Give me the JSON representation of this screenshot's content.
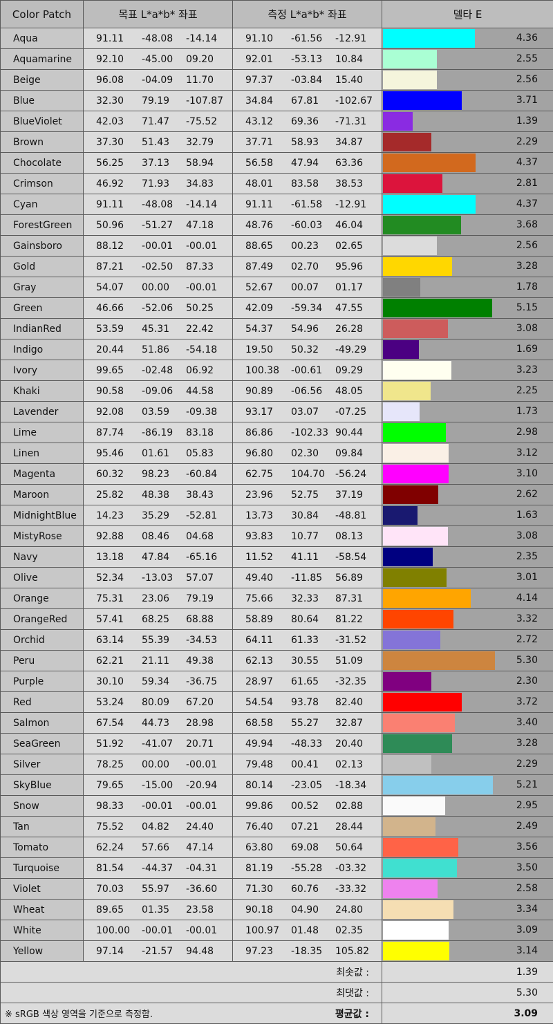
{
  "header": {
    "name": "Color Patch",
    "target": "목표 L*a*b* 좌표",
    "measured": "측정 L*a*b* 좌표",
    "delta": "델타 E"
  },
  "rows": [
    {
      "name": "Aqua",
      "color": "#00ffff",
      "target": [
        "91.11",
        "-48.08",
        "-14.14"
      ],
      "measured": [
        "91.10",
        "-61.56",
        "-12.91"
      ],
      "delta": "4.36"
    },
    {
      "name": "Aquamarine",
      "color": "#aaffd4",
      "target": [
        "92.10",
        "-45.00",
        "09.20"
      ],
      "measured": [
        "92.01",
        "-53.13",
        "10.84"
      ],
      "delta": "2.55"
    },
    {
      "name": "Beige",
      "color": "#f5f5dc",
      "target": [
        "96.08",
        "-04.09",
        "11.70"
      ],
      "measured": [
        "97.37",
        "-03.84",
        "15.40"
      ],
      "delta": "2.56"
    },
    {
      "name": "Blue",
      "color": "#0000ff",
      "target": [
        "32.30",
        "79.19",
        "-107.87"
      ],
      "measured": [
        "34.84",
        "67.81",
        "-102.67"
      ],
      "delta": "3.71"
    },
    {
      "name": "BlueViolet",
      "color": "#8a2be2",
      "target": [
        "42.03",
        "71.47",
        "-75.52"
      ],
      "measured": [
        "43.12",
        "69.36",
        "-71.31"
      ],
      "delta": "1.39"
    },
    {
      "name": "Brown",
      "color": "#a52a2a",
      "target": [
        "37.30",
        "51.43",
        "32.79"
      ],
      "measured": [
        "37.71",
        "58.93",
        "34.87"
      ],
      "delta": "2.29"
    },
    {
      "name": "Chocolate",
      "color": "#d2691e",
      "target": [
        "56.25",
        "37.13",
        "58.94"
      ],
      "measured": [
        "56.58",
        "47.94",
        "63.36"
      ],
      "delta": "4.37"
    },
    {
      "name": "Crimson",
      "color": "#dc143c",
      "target": [
        "46.92",
        "71.93",
        "34.83"
      ],
      "measured": [
        "48.01",
        "83.58",
        "38.53"
      ],
      "delta": "2.81"
    },
    {
      "name": "Cyan",
      "color": "#00ffff",
      "target": [
        "91.11",
        "-48.08",
        "-14.14"
      ],
      "measured": [
        "91.11",
        "-61.58",
        "-12.91"
      ],
      "delta": "4.37"
    },
    {
      "name": "ForestGreen",
      "color": "#228b22",
      "target": [
        "50.96",
        "-51.27",
        "47.18"
      ],
      "measured": [
        "48.76",
        "-60.03",
        "46.04"
      ],
      "delta": "3.68"
    },
    {
      "name": "Gainsboro",
      "color": "#dcdcdc",
      "target": [
        "88.12",
        "-00.01",
        "-00.01"
      ],
      "measured": [
        "88.65",
        "00.23",
        "02.65"
      ],
      "delta": "2.56"
    },
    {
      "name": "Gold",
      "color": "#ffd700",
      "target": [
        "87.21",
        "-02.50",
        "87.33"
      ],
      "measured": [
        "87.49",
        "02.70",
        "95.96"
      ],
      "delta": "3.28"
    },
    {
      "name": "Gray",
      "color": "#808080",
      "target": [
        "54.07",
        "00.00",
        "-00.01"
      ],
      "measured": [
        "52.67",
        "00.07",
        "01.17"
      ],
      "delta": "1.78"
    },
    {
      "name": "Green",
      "color": "#008000",
      "target": [
        "46.66",
        "-52.06",
        "50.25"
      ],
      "measured": [
        "42.09",
        "-59.34",
        "47.55"
      ],
      "delta": "5.15"
    },
    {
      "name": "IndianRed",
      "color": "#cd5c5c",
      "target": [
        "53.59",
        "45.31",
        "22.42"
      ],
      "measured": [
        "54.37",
        "54.96",
        "26.28"
      ],
      "delta": "3.08"
    },
    {
      "name": "Indigo",
      "color": "#4b0082",
      "target": [
        "20.44",
        "51.86",
        "-54.18"
      ],
      "measured": [
        "19.50",
        "50.32",
        "-49.29"
      ],
      "delta": "1.69"
    },
    {
      "name": "Ivory",
      "color": "#fffff0",
      "target": [
        "99.65",
        "-02.48",
        "06.92"
      ],
      "measured": [
        "100.38",
        "-00.61",
        "09.29"
      ],
      "delta": "3.23"
    },
    {
      "name": "Khaki",
      "color": "#f0e68c",
      "target": [
        "90.58",
        "-09.06",
        "44.58"
      ],
      "measured": [
        "90.89",
        "-06.56",
        "48.05"
      ],
      "delta": "2.25"
    },
    {
      "name": "Lavender",
      "color": "#e6e6fa",
      "target": [
        "92.08",
        "03.59",
        "-09.38"
      ],
      "measured": [
        "93.17",
        "03.07",
        "-07.25"
      ],
      "delta": "1.73"
    },
    {
      "name": "Lime",
      "color": "#00ff00",
      "target": [
        "87.74",
        "-86.19",
        "83.18"
      ],
      "measured": [
        "86.86",
        "-102.33",
        "90.44"
      ],
      "delta": "2.98"
    },
    {
      "name": "Linen",
      "color": "#faf0e6",
      "target": [
        "95.46",
        "01.61",
        "05.83"
      ],
      "measured": [
        "96.80",
        "02.30",
        "09.84"
      ],
      "delta": "3.12"
    },
    {
      "name": "Magenta",
      "color": "#ff00ff",
      "target": [
        "60.32",
        "98.23",
        "-60.84"
      ],
      "measured": [
        "62.75",
        "104.70",
        "-56.24"
      ],
      "delta": "3.10"
    },
    {
      "name": "Maroon",
      "color": "#800000",
      "target": [
        "25.82",
        "48.38",
        "38.43"
      ],
      "measured": [
        "23.96",
        "52.75",
        "37.19"
      ],
      "delta": "2.62"
    },
    {
      "name": "MidnightBlue",
      "color": "#191970",
      "target": [
        "14.23",
        "35.29",
        "-52.81"
      ],
      "measured": [
        "13.73",
        "30.84",
        "-48.81"
      ],
      "delta": "1.63"
    },
    {
      "name": "MistyRose",
      "color": "#ffe4f8",
      "target": [
        "92.88",
        "08.46",
        "04.68"
      ],
      "measured": [
        "93.83",
        "10.77",
        "08.13"
      ],
      "delta": "3.08"
    },
    {
      "name": "Navy",
      "color": "#000080",
      "target": [
        "13.18",
        "47.84",
        "-65.16"
      ],
      "measured": [
        "11.52",
        "41.11",
        "-58.54"
      ],
      "delta": "2.35"
    },
    {
      "name": "Olive",
      "color": "#808000",
      "target": [
        "52.34",
        "-13.03",
        "57.07"
      ],
      "measured": [
        "49.40",
        "-11.85",
        "56.89"
      ],
      "delta": "3.01"
    },
    {
      "name": "Orange",
      "color": "#ffa500",
      "target": [
        "75.31",
        "23.06",
        "79.19"
      ],
      "measured": [
        "75.66",
        "32.33",
        "87.31"
      ],
      "delta": "4.14"
    },
    {
      "name": "OrangeRed",
      "color": "#ff4500",
      "target": [
        "57.41",
        "68.25",
        "68.88"
      ],
      "measured": [
        "58.89",
        "80.64",
        "81.22"
      ],
      "delta": "3.32"
    },
    {
      "name": "Orchid",
      "color": "#8474d8",
      "target": [
        "63.14",
        "55.39",
        "-34.53"
      ],
      "measured": [
        "64.11",
        "61.33",
        "-31.52"
      ],
      "delta": "2.72"
    },
    {
      "name": "Peru",
      "color": "#cd853f",
      "target": [
        "62.21",
        "21.11",
        "49.38"
      ],
      "measured": [
        "62.13",
        "30.55",
        "51.09"
      ],
      "delta": "5.30"
    },
    {
      "name": "Purple",
      "color": "#800080",
      "target": [
        "30.10",
        "59.34",
        "-36.75"
      ],
      "measured": [
        "28.97",
        "61.65",
        "-32.35"
      ],
      "delta": "2.30"
    },
    {
      "name": "Red",
      "color": "#ff0000",
      "target": [
        "53.24",
        "80.09",
        "67.20"
      ],
      "measured": [
        "54.54",
        "93.78",
        "82.40"
      ],
      "delta": "3.72"
    },
    {
      "name": "Salmon",
      "color": "#fa8072",
      "target": [
        "67.54",
        "44.73",
        "28.98"
      ],
      "measured": [
        "68.58",
        "55.27",
        "32.87"
      ],
      "delta": "3.40"
    },
    {
      "name": "SeaGreen",
      "color": "#2e8b57",
      "target": [
        "51.92",
        "-41.07",
        "20.71"
      ],
      "measured": [
        "49.94",
        "-48.33",
        "20.40"
      ],
      "delta": "3.28"
    },
    {
      "name": "Silver",
      "color": "#c0c0c0",
      "target": [
        "78.25",
        "00.00",
        "-00.01"
      ],
      "measured": [
        "79.48",
        "00.41",
        "02.13"
      ],
      "delta": "2.29"
    },
    {
      "name": "SkyBlue",
      "color": "#87ceeb",
      "target": [
        "79.65",
        "-15.00",
        "-20.94"
      ],
      "measured": [
        "80.14",
        "-23.05",
        "-18.34"
      ],
      "delta": "5.21"
    },
    {
      "name": "Snow",
      "color": "#fafafa",
      "target": [
        "98.33",
        "-00.01",
        "-00.01"
      ],
      "measured": [
        "99.86",
        "00.52",
        "02.88"
      ],
      "delta": "2.95"
    },
    {
      "name": "Tan",
      "color": "#d2b48c",
      "target": [
        "75.52",
        "04.82",
        "24.40"
      ],
      "measured": [
        "76.40",
        "07.21",
        "28.44"
      ],
      "delta": "2.49"
    },
    {
      "name": "Tomato",
      "color": "#ff6347",
      "target": [
        "62.24",
        "57.66",
        "47.14"
      ],
      "measured": [
        "63.80",
        "69.08",
        "50.64"
      ],
      "delta": "3.56"
    },
    {
      "name": "Turquoise",
      "color": "#40e0d0",
      "target": [
        "81.54",
        "-44.37",
        "-04.31"
      ],
      "measured": [
        "81.19",
        "-55.28",
        "-03.32"
      ],
      "delta": "3.50"
    },
    {
      "name": "Violet",
      "color": "#ee82ee",
      "target": [
        "70.03",
        "55.97",
        "-36.60"
      ],
      "measured": [
        "71.30",
        "60.76",
        "-33.32"
      ],
      "delta": "2.58"
    },
    {
      "name": "Wheat",
      "color": "#f5deb3",
      "target": [
        "89.65",
        "01.35",
        "23.58"
      ],
      "measured": [
        "90.18",
        "04.90",
        "24.80"
      ],
      "delta": "3.34"
    },
    {
      "name": "White",
      "color": "#ffffff",
      "target": [
        "100.00",
        "-00.01",
        "-00.01"
      ],
      "measured": [
        "100.97",
        "01.48",
        "02.35"
      ],
      "delta": "3.09"
    },
    {
      "name": "Yellow",
      "color": "#ffff00",
      "target": [
        "97.14",
        "-21.57",
        "94.48"
      ],
      "measured": [
        "97.23",
        "-18.35",
        "105.82"
      ],
      "delta": "3.14"
    }
  ],
  "footer": {
    "min_label": "최솟값 :",
    "min_value": "1.39",
    "max_label": "최댓값 :",
    "max_value": "5.30",
    "avg_label": "평균값 :",
    "avg_value": "3.09",
    "note": "※ sRGB 색상 영역을 기준으로 측정함."
  }
}
